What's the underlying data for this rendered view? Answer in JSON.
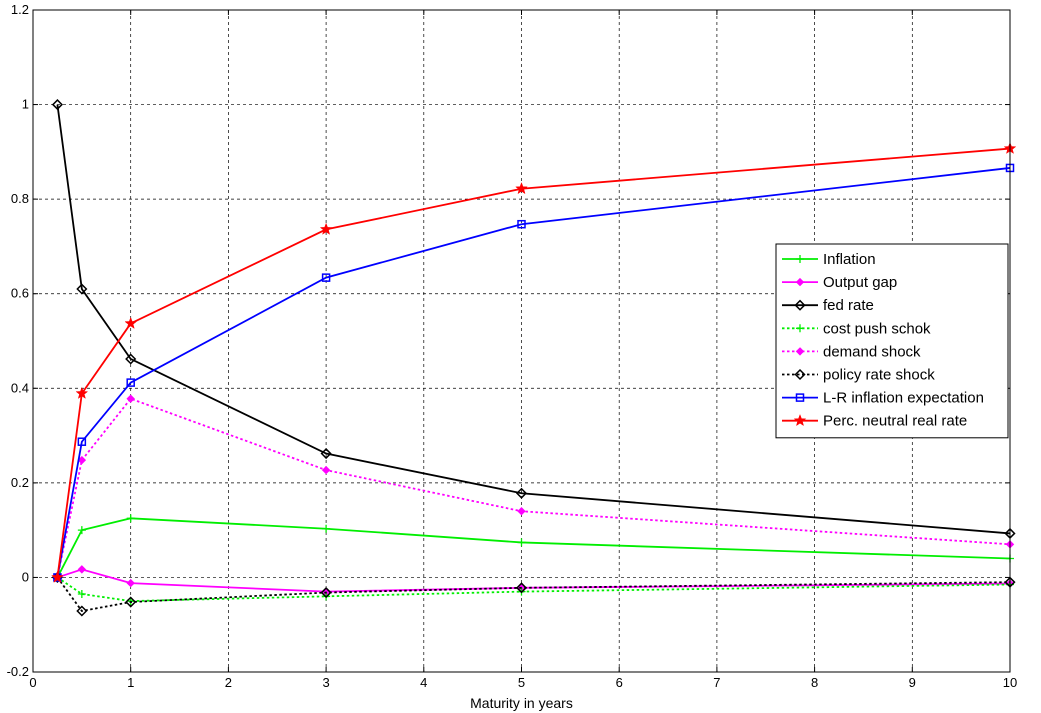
{
  "chart_data": {
    "type": "line",
    "title": "",
    "xlabel": "Maturity in years",
    "ylabel": "",
    "xlim": [
      0,
      10
    ],
    "ylim": [
      -0.2,
      1.2
    ],
    "xticks": [
      0,
      1,
      2,
      3,
      4,
      5,
      6,
      7,
      8,
      9,
      10
    ],
    "yticks": [
      -0.2,
      0,
      0.2,
      0.4,
      0.6,
      0.8,
      1,
      1.2
    ],
    "ytick_labels": [
      "-0.2",
      "0",
      "0.2",
      "0.4",
      "0.6",
      "0.8",
      "1",
      "1.2"
    ],
    "grid": true,
    "legend_position": "right",
    "x": [
      0.25,
      0.5,
      1,
      3,
      5,
      10
    ],
    "series": [
      {
        "name": "Inflation",
        "color": "#00ee00",
        "dash": "solid",
        "marker": "plus",
        "values": [
          0,
          0.1,
          0.125,
          0.103,
          0.074,
          0.04
        ]
      },
      {
        "name": "Output gap",
        "color": "#ff00ff",
        "dash": "solid",
        "marker": "diamond-filled",
        "values": [
          0,
          0.017,
          -0.012,
          -0.03,
          -0.022,
          -0.013
        ]
      },
      {
        "name": "fed rate",
        "color": "#000000",
        "dash": "solid",
        "marker": "diamond-open",
        "values": [
          1.0,
          0.61,
          0.462,
          0.262,
          0.178,
          0.093
        ]
      },
      {
        "name": "cost push schok",
        "color": "#00ee00",
        "dash": "dotted",
        "marker": "plus",
        "values": [
          0,
          -0.035,
          -0.05,
          -0.04,
          -0.03,
          -0.015
        ]
      },
      {
        "name": "demand shock",
        "color": "#ff00ff",
        "dash": "dotted",
        "marker": "diamond-filled",
        "values": [
          0,
          0.248,
          0.378,
          0.227,
          0.14,
          0.07
        ]
      },
      {
        "name": "policy rate shock",
        "color": "#000000",
        "dash": "dotted",
        "marker": "diamond-open",
        "values": [
          0,
          -0.071,
          -0.052,
          -0.032,
          -0.022,
          -0.01
        ]
      },
      {
        "name": "L-R inflation expectation",
        "color": "#0000ff",
        "dash": "solid",
        "marker": "square",
        "values": [
          0,
          0.287,
          0.412,
          0.634,
          0.747,
          0.866
        ]
      },
      {
        "name": "Perc. neutral real rate",
        "color": "#ff0000",
        "dash": "solid",
        "marker": "star",
        "values": [
          0,
          0.389,
          0.537,
          0.736,
          0.822,
          0.907
        ]
      }
    ]
  }
}
